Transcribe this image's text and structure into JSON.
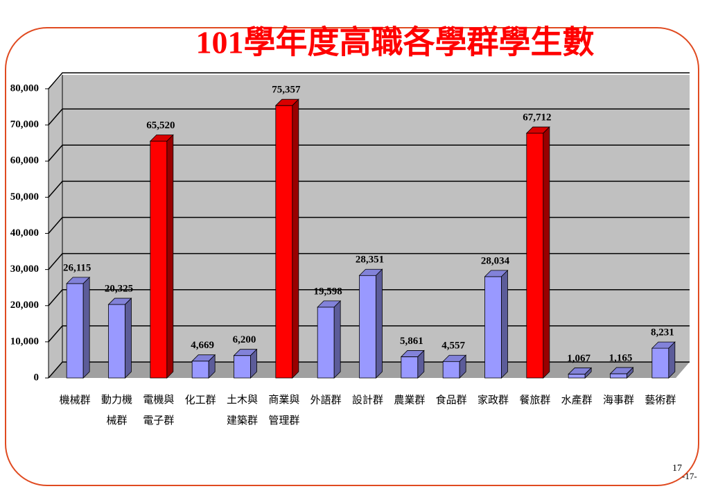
{
  "chart_data": {
    "type": "bar3d",
    "title": "101學年度高職各學群學生數",
    "categories": [
      "機械群",
      "動力機械群",
      "電機與電子群",
      "化工群",
      "土木與建築群",
      "商業與管理群",
      "外語群",
      "設計群",
      "農業群",
      "食品群",
      "家政群",
      "餐旅群",
      "水產群",
      "海事群",
      "藝術群"
    ],
    "values": [
      26115,
      20325,
      65520,
      4669,
      6200,
      75357,
      19598,
      28351,
      5861,
      4557,
      28034,
      67712,
      1067,
      1165,
      8231
    ],
    "value_labels": [
      "26,115",
      "20,325",
      "65,520",
      "4,669",
      "6,200",
      "75,357",
      "19,598",
      "28,351",
      "5,861",
      "4,557",
      "28,034",
      "67,712",
      "1,067",
      "1,165",
      "8,231"
    ],
    "colors": [
      "#9999ff",
      "#9999ff",
      "#ff0000",
      "#9999ff",
      "#9999ff",
      "#ff0000",
      "#9999ff",
      "#9999ff",
      "#9999ff",
      "#9999ff",
      "#9999ff",
      "#ff0000",
      "#9999ff",
      "#9999ff",
      "#9999ff"
    ],
    "ylim": [
      0,
      80000
    ],
    "yticks": [
      0,
      {
        "value": 10000,
        "label": "10,000"
      },
      {
        "value": 20000,
        "label": "20,000"
      },
      {
        "value": 30000,
        "label": "30,000"
      },
      {
        "value": 40000,
        "label": "40,000"
      },
      {
        "value": 50000,
        "label": "50,000"
      },
      {
        "value": 60000,
        "label": "60,000"
      },
      {
        "value": 70000,
        "label": "70,000"
      },
      {
        "value": 80000,
        "label": "80,000"
      }
    ],
    "grid": true,
    "page_number": "17",
    "footer": "-17-"
  }
}
